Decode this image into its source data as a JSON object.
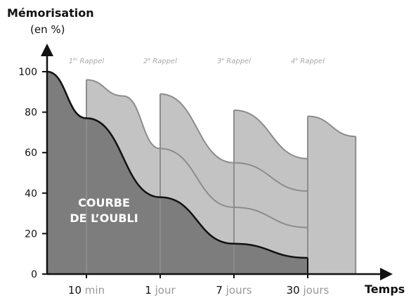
{
  "chart_data": {
    "type": "area",
    "ylabel": "Mémorisation",
    "ylabel_unit": "(en %)",
    "xlabel": "Temps",
    "ylim": [
      0,
      100
    ],
    "yticks": [
      "0",
      "20",
      "40",
      "60",
      "80",
      "100"
    ],
    "xticks": [
      {
        "value": "10",
        "unit": "min"
      },
      {
        "value": "1",
        "unit": "jour"
      },
      {
        "value": "7",
        "unit": "jours"
      },
      {
        "value": "30",
        "unit": "jours"
      }
    ],
    "annotation": [
      "COURBE",
      "DE L’OUBLI"
    ],
    "rappels": [
      {
        "num": "1",
        "sup": "er",
        "label": "Rappel"
      },
      {
        "num": "2",
        "sup": "e",
        "label": "Rappel"
      },
      {
        "num": "3",
        "sup": "e",
        "label": "Rappel"
      },
      {
        "num": "4",
        "sup": "e",
        "label": "Rappel"
      }
    ],
    "series": [
      {
        "values": [
          [
            0,
            100
          ],
          [
            1,
            77
          ],
          [
            2,
            38
          ],
          [
            3,
            15
          ],
          [
            4,
            8
          ]
        ]
      },
      {
        "values": [
          [
            1,
            96
          ],
          [
            1.5,
            88
          ],
          [
            2,
            62
          ],
          [
            3,
            33
          ],
          [
            4,
            23
          ]
        ]
      },
      {
        "values": [
          [
            2,
            89
          ],
          [
            3,
            55
          ],
          [
            4,
            41
          ]
        ]
      },
      {
        "values": [
          [
            3,
            81
          ],
          [
            4,
            57
          ]
        ]
      },
      {
        "values": [
          [
            4,
            78
          ],
          [
            4.65,
            68
          ]
        ]
      }
    ]
  }
}
